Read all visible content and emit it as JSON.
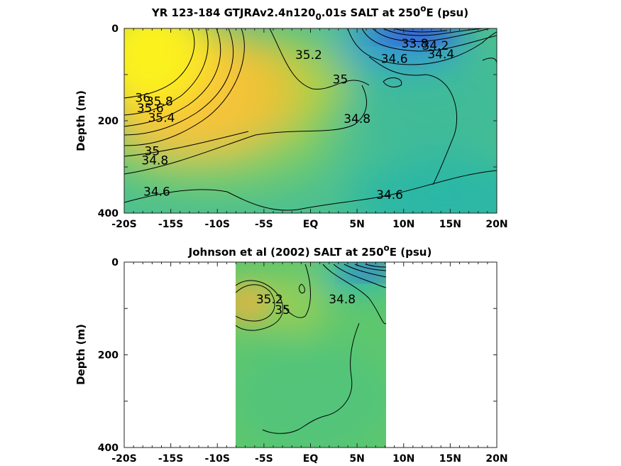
{
  "chart_data": [
    {
      "type": "contour",
      "title_parts": [
        "YR 123-184 GTJRAv2.4n120",
        "0",
        ".01s SALT at 250",
        "o",
        "E (psu)"
      ],
      "ylabel": "Depth (m)",
      "x_ticks": [
        "-20S",
        "-15S",
        "-10S",
        "-5S",
        "EQ",
        "5N",
        "10N",
        "15N",
        "20N"
      ],
      "y_ticks": [
        "0",
        "200",
        "400"
      ],
      "xlim": [
        -20,
        20
      ],
      "ylim": [
        0,
        400
      ],
      "data_extent": [
        -20,
        20
      ],
      "contour_labels": [
        {
          "text": "36",
          "lat": -18.0,
          "depth": 150
        },
        {
          "text": "35.8",
          "lat": -16.2,
          "depth": 158
        },
        {
          "text": "35.6",
          "lat": -17.2,
          "depth": 172
        },
        {
          "text": "35.4",
          "lat": -16.0,
          "depth": 193
        },
        {
          "text": "35.2",
          "lat": -0.2,
          "depth": 57
        },
        {
          "text": "35",
          "lat": 3.2,
          "depth": 110
        },
        {
          "text": "35",
          "lat": -17.0,
          "depth": 265
        },
        {
          "text": "34.8",
          "lat": 5.0,
          "depth": 195
        },
        {
          "text": "34.8",
          "lat": -16.7,
          "depth": 285
        },
        {
          "text": "34.6",
          "lat": 9.0,
          "depth": 65
        },
        {
          "text": "34.6",
          "lat": -16.5,
          "depth": 353
        },
        {
          "text": "34.6",
          "lat": 8.5,
          "depth": 360
        },
        {
          "text": "33.8",
          "lat": 11.2,
          "depth": 32
        },
        {
          "text": "34.2",
          "lat": 13.4,
          "depth": 37
        },
        {
          "text": "34.4",
          "lat": 14.0,
          "depth": 55
        }
      ]
    },
    {
      "type": "contour",
      "title_parts": [
        "Johnson et al (2002) SALT at 250",
        "o",
        "E (psu)"
      ],
      "ylabel": "Depth (m)",
      "x_ticks": [
        "-20S",
        "-15S",
        "-10S",
        "-5S",
        "EQ",
        "5N",
        "10N",
        "15N",
        "20N"
      ],
      "y_ticks": [
        "0",
        "200",
        "400"
      ],
      "xlim": [
        -20,
        20
      ],
      "ylim": [
        0,
        400
      ],
      "data_extent": [
        -8,
        8.3
      ],
      "contour_labels": [
        {
          "text": "35.2",
          "lat": -4.4,
          "depth": 80
        },
        {
          "text": "35",
          "lat": -3.0,
          "depth": 103
        },
        {
          "text": "34.8",
          "lat": 3.4,
          "depth": 80
        }
      ]
    }
  ]
}
